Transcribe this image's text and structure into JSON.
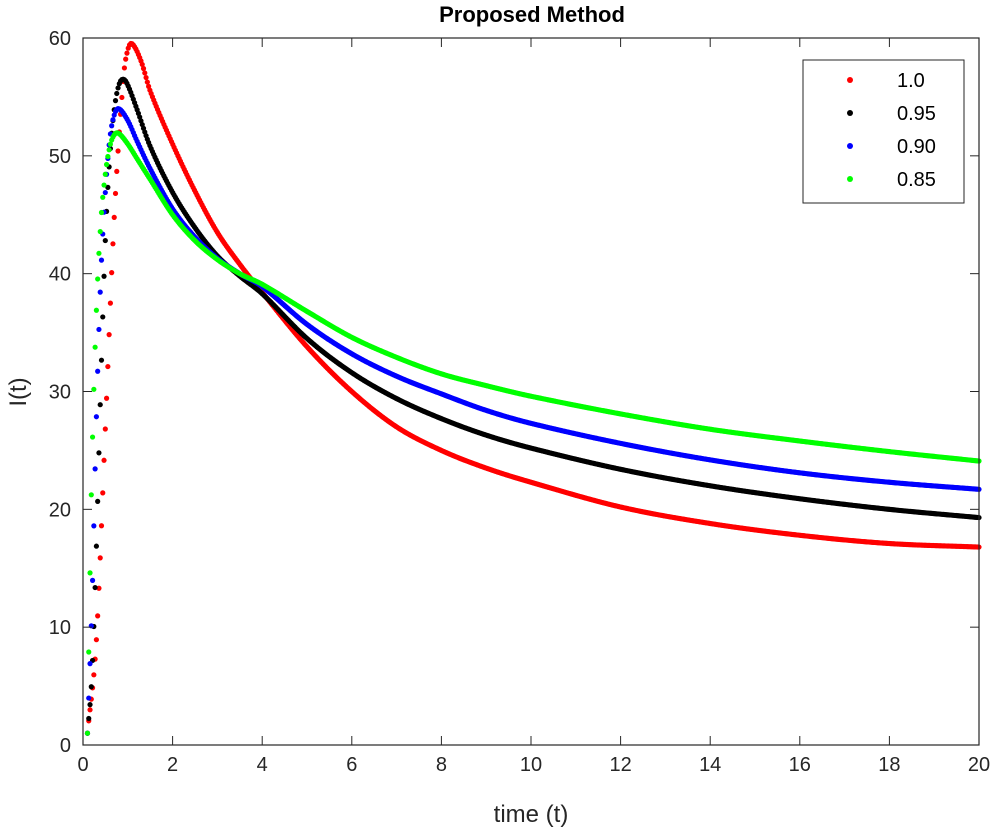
{
  "chart_data": {
    "type": "scatter",
    "title": "Proposed Method",
    "xlabel": "time (t)",
    "ylabel": "I(t)",
    "xlim": [
      0,
      20
    ],
    "ylim": [
      0,
      60
    ],
    "xticks": [
      "0",
      "2",
      "4",
      "6",
      "8",
      "10",
      "12",
      "14",
      "16",
      "18",
      "20"
    ],
    "yticks": [
      "0",
      "10",
      "20",
      "30",
      "40",
      "50",
      "60"
    ],
    "grid": false,
    "legend_position": "top-right",
    "series": [
      {
        "name": "1.0",
        "color": "#ff0000",
        "x": [
          0.1,
          0.3,
          0.5,
          0.7,
          0.9,
          1.0,
          1.1,
          1.3,
          1.5,
          2.0,
          2.5,
          3.0,
          3.5,
          4.0,
          5.0,
          6.0,
          7.0,
          8.0,
          9.0,
          10.0,
          12.0,
          14.0,
          16.0,
          18.0,
          20.0
        ],
        "y": [
          1.0,
          9.0,
          27.0,
          45.0,
          56.5,
          59.0,
          59.5,
          58.0,
          55.5,
          51.0,
          47.0,
          43.5,
          40.8,
          38.4,
          33.8,
          30.0,
          27.0,
          25.0,
          23.5,
          22.3,
          20.2,
          18.8,
          17.8,
          17.1,
          16.8
        ]
      },
      {
        "name": "0.95",
        "color": "#000000",
        "x": [
          0.1,
          0.2,
          0.3,
          0.4,
          0.5,
          0.6,
          0.7,
          0.8,
          0.9,
          1.0,
          1.2,
          1.5,
          2.0,
          2.5,
          3.0,
          3.5,
          4.0,
          5.0,
          6.0,
          7.0,
          8.0,
          9.0,
          10.0,
          12.0,
          14.0,
          16.0,
          18.0,
          20.0
        ],
        "y": [
          1.0,
          6.0,
          17.0,
          31.0,
          43.0,
          50.0,
          54.0,
          56.0,
          56.5,
          56.0,
          54.0,
          50.8,
          46.9,
          43.9,
          41.5,
          39.8,
          38.3,
          34.5,
          31.6,
          29.4,
          27.7,
          26.3,
          25.2,
          23.4,
          22.0,
          20.9,
          20.0,
          19.3
        ]
      },
      {
        "name": "0.90",
        "color": "#0000ff",
        "x": [
          0.1,
          0.2,
          0.3,
          0.4,
          0.5,
          0.6,
          0.7,
          0.8,
          1.0,
          1.2,
          1.5,
          2.0,
          2.5,
          3.0,
          3.5,
          4.0,
          5.0,
          6.0,
          7.0,
          8.0,
          9.0,
          10.0,
          12.0,
          14.0,
          16.0,
          18.0,
          20.0
        ],
        "y": [
          1.0,
          12.0,
          28.0,
          40.0,
          47.0,
          51.5,
          53.5,
          54.0,
          53.0,
          51.3,
          48.9,
          45.5,
          43.1,
          41.3,
          40.0,
          38.9,
          35.7,
          33.2,
          31.3,
          29.8,
          28.4,
          27.3,
          25.6,
          24.2,
          23.1,
          22.3,
          21.7
        ]
      },
      {
        "name": "0.85",
        "color": "#00ff00",
        "x": [
          0.1,
          0.15,
          0.2,
          0.3,
          0.4,
          0.5,
          0.6,
          0.7,
          0.8,
          1.0,
          1.2,
          1.5,
          2.0,
          2.5,
          3.0,
          3.5,
          4.0,
          5.0,
          6.0,
          7.0,
          8.0,
          9.0,
          10.0,
          12.0,
          14.0,
          16.0,
          18.0,
          20.0
        ],
        "y": [
          1.0,
          13.0,
          24.0,
          37.0,
          44.5,
          48.5,
          50.8,
          51.8,
          51.9,
          51.0,
          49.8,
          48.0,
          45.0,
          42.8,
          41.2,
          40.0,
          39.1,
          36.8,
          34.6,
          32.9,
          31.5,
          30.5,
          29.6,
          28.1,
          26.8,
          25.8,
          24.9,
          24.1
        ]
      }
    ]
  }
}
